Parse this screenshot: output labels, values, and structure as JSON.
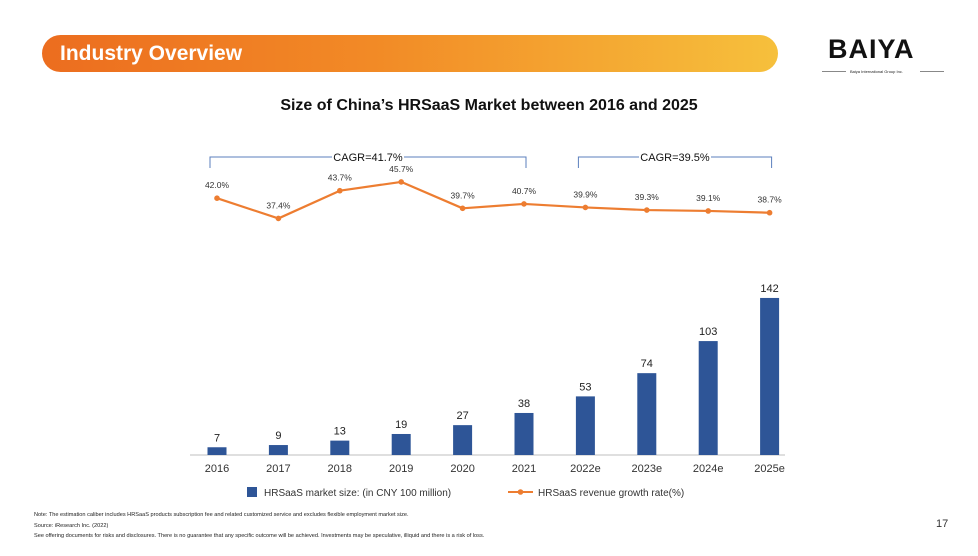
{
  "header": {
    "title": "Industry Overview"
  },
  "logo": {
    "wordmark": "BAIYA",
    "subtitle": "Baiya International Group Inc."
  },
  "page_number": "17",
  "footnotes": [
    "Note: The estimation caliber includes HRSaaS products subscription fee and related customized service and excludes flexible employment market size.",
    "Source: iResearch Inc. (2022)",
    "See offering documents for risks and disclosures. There is no guarantee that any specific outcome will be achieved. Investments may be speculative, illiquid and there is a risk of loss."
  ],
  "colors": {
    "bar": "#2e5597",
    "line": "#ed7d31",
    "banner_start": "#ec6d1f",
    "banner_end": "#f6c03c",
    "bracket": "#5b7fbd"
  },
  "chart_data": {
    "type": "bar",
    "title": "Size of China’s HRSaaS Market between 2016 and 2025",
    "categories": [
      "2016",
      "2017",
      "2018",
      "2019",
      "2020",
      "2021",
      "2022e",
      "2023e",
      "2024e",
      "2025e"
    ],
    "series": [
      {
        "name": "HRSaaS market size: (in CNY 100 million)",
        "type": "bar",
        "values": [
          7,
          9,
          13,
          19,
          27,
          38,
          53,
          74,
          103,
          142
        ]
      },
      {
        "name": "HRSaaS revenue growth rate(%)",
        "type": "line",
        "values": [
          42.0,
          37.4,
          43.7,
          45.7,
          39.7,
          40.7,
          39.9,
          39.3,
          39.1,
          38.7
        ],
        "labels": [
          "42.0%",
          "37.4%",
          "43.7%",
          "45.7%",
          "39.7%",
          "40.7%",
          "39.9%",
          "39.3%",
          "39.1%",
          "38.7%"
        ]
      }
    ],
    "annotations": [
      {
        "text": "CAGR=41.7%",
        "from": "2016",
        "to": "2021"
      },
      {
        "text": "CAGR=39.5%",
        "from": "2022e",
        "to": "2025e"
      }
    ],
    "legend_position": "bottom"
  }
}
